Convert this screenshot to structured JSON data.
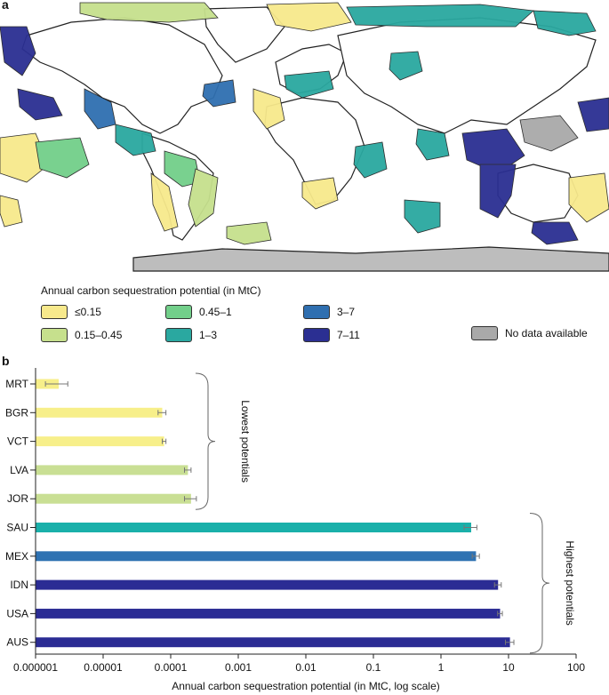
{
  "figure": {
    "panel_a_label": "a",
    "panel_b_label": "b"
  },
  "map": {
    "legend_title": "Annual carbon sequestration potential (in MtC)",
    "legend": [
      {
        "label": "≤0.15",
        "color": "#f7e98c"
      },
      {
        "label": "0.45–1",
        "color": "#72cf8a"
      },
      {
        "label": "3–7",
        "color": "#2f6fb0"
      },
      {
        "label": "0.15–0.45",
        "color": "#c6e08d"
      },
      {
        "label": "1–3",
        "color": "#2aa8a0"
      },
      {
        "label": "7–11",
        "color": "#2b2f92"
      },
      {
        "label": "No data available",
        "color": "#a9a9a9"
      }
    ]
  },
  "chart_data": {
    "type": "bar",
    "orientation": "horizontal",
    "categories": [
      "MRT",
      "BGR",
      "VCT",
      "LVA",
      "JOR",
      "SAU",
      "MEX",
      "IDN",
      "USA",
      "AUS"
    ],
    "values": [
      2.2e-06,
      7.5e-05,
      8e-05,
      0.00018,
      0.0002,
      2.8,
      3.3,
      7.0,
      7.5,
      10.5
    ],
    "errors": [
      8e-07,
      1e-05,
      5e-06,
      2e-05,
      4e-05,
      0.6,
      0.4,
      0.8,
      0.6,
      1.5
    ],
    "bar_colors": [
      "#f7ef8a",
      "#f7ef8a",
      "#f7ef8a",
      "#c9df94",
      "#c9df94",
      "#1ab0aa",
      "#2f72b2",
      "#2b2c94",
      "#2b2c94",
      "#2b2c94"
    ],
    "xscale": "log",
    "xlim": [
      1e-06,
      100
    ],
    "xticks": [
      "0.000001",
      "0.00001",
      "0.0001",
      "0.001",
      "0.01",
      "0.1",
      "1",
      "10",
      "100"
    ],
    "xlabel": "Annual carbon sequestration potential (in MtC, log scale)",
    "annotations": [
      {
        "text": "Lowest potentials",
        "categories": [
          "MRT",
          "BGR",
          "VCT",
          "LVA",
          "JOR"
        ]
      },
      {
        "text": "Highest potentials",
        "categories": [
          "SAU",
          "MEX",
          "IDN",
          "USA",
          "AUS"
        ]
      }
    ]
  }
}
